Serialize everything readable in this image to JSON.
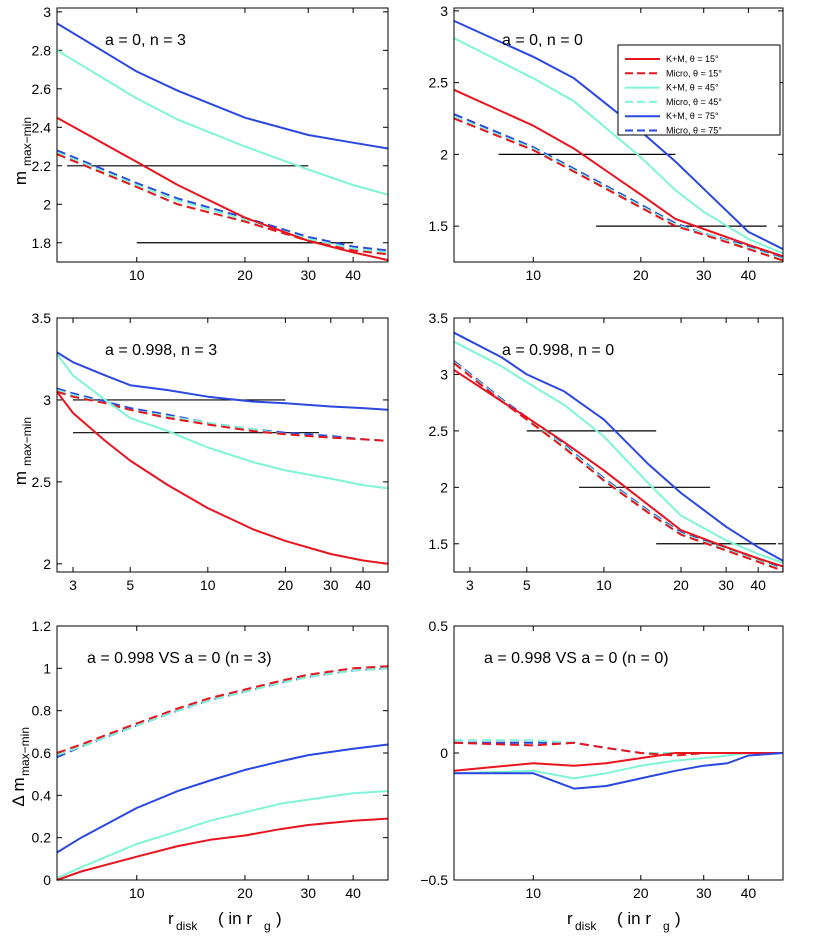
{
  "legend": {
    "entries": [
      {
        "label": "K+M,  θ = 15°",
        "color": "#e8141e",
        "dash": false
      },
      {
        "label": "Micro,  θ = 15°",
        "color": "#e8141e",
        "dash": true
      },
      {
        "label": "K+M,  θ = 45°",
        "color": "#7ff5d6",
        "dash": false
      },
      {
        "label": "Micro,  θ = 45°",
        "color": "#7ff5d6",
        "dash": true
      },
      {
        "label": "K+M,  θ = 75°",
        "color": "#2a47e0",
        "dash": false
      },
      {
        "label": "Micro,  θ = 75°",
        "color": "#2a47e0",
        "dash": true
      }
    ]
  },
  "labels": {
    "ylabel_main": "m",
    "ylabel_sub": "max−min",
    "ylabel_delta": "Δ m",
    "xlabel_main": "r",
    "xlabel_sub": "disk",
    "xlabel_units": "( in r",
    "xlabel_units_sub": "g",
    "xlabel_close": ")"
  },
  "chart_data": [
    {
      "type": "line",
      "annotation": "a = 0, n = 3",
      "xscale": "log",
      "xlim": [
        6,
        50
      ],
      "ylim": [
        1.7,
        3.02
      ],
      "xticks": [
        10,
        20,
        30,
        40
      ],
      "yticks": [
        1.8,
        2,
        2.2,
        2.4,
        2.6,
        2.8,
        3
      ],
      "x": [
        6,
        10,
        13,
        20,
        30,
        40,
        50
      ],
      "series": [
        {
          "name": "K+M, θ = 15°",
          "values": [
            2.45,
            2.22,
            2.1,
            1.93,
            1.81,
            1.75,
            1.71
          ]
        },
        {
          "name": "Micro, θ = 15°",
          "values": [
            2.26,
            2.09,
            2.0,
            1.91,
            1.81,
            1.76,
            1.74
          ]
        },
        {
          "name": "K+M, θ = 45°",
          "values": [
            2.8,
            2.55,
            2.44,
            2.3,
            2.18,
            2.1,
            2.05
          ]
        },
        {
          "name": "Micro, θ = 45°",
          "values": [
            2.27,
            2.1,
            2.02,
            1.92,
            1.82,
            1.77,
            1.75
          ]
        },
        {
          "name": "K+M, θ = 75°",
          "values": [
            2.94,
            2.69,
            2.59,
            2.45,
            2.36,
            2.32,
            2.29
          ]
        },
        {
          "name": "Micro, θ = 75°",
          "values": [
            2.28,
            2.11,
            2.03,
            1.93,
            1.83,
            1.78,
            1.76
          ]
        }
      ],
      "hlines": [
        {
          "y": 2.2,
          "x1": 6.4,
          "x2": 30
        },
        {
          "y": 1.8,
          "x1": 10,
          "x2": 40
        }
      ]
    },
    {
      "type": "line",
      "annotation": "a = 0, n = 0",
      "xscale": "log",
      "xlim": [
        6,
        50
      ],
      "ylim": [
        1.25,
        3.02
      ],
      "xticks": [
        10,
        20,
        30,
        40
      ],
      "yticks": [
        1.5,
        2,
        2.5,
        3
      ],
      "x": [
        6,
        10,
        13,
        20,
        25,
        30,
        40,
        50
      ],
      "series": [
        {
          "name": "K+M, θ = 15°",
          "values": [
            2.45,
            2.2,
            2.04,
            1.72,
            1.55,
            1.48,
            1.37,
            1.29
          ]
        },
        {
          "name": "Micro, θ = 15°",
          "values": [
            2.25,
            2.03,
            1.88,
            1.63,
            1.5,
            1.44,
            1.34,
            1.26
          ]
        },
        {
          "name": "K+M, θ = 45°",
          "values": [
            2.81,
            2.53,
            2.37,
            1.98,
            1.75,
            1.6,
            1.41,
            1.31
          ]
        },
        {
          "name": "Micro, θ = 45°",
          "values": [
            2.26,
            2.04,
            1.89,
            1.64,
            1.51,
            1.45,
            1.35,
            1.27
          ]
        },
        {
          "name": "K+M, θ = 75°",
          "values": [
            2.93,
            2.68,
            2.53,
            2.16,
            1.95,
            1.76,
            1.46,
            1.34
          ]
        },
        {
          "name": "Micro, θ = 75°",
          "values": [
            2.28,
            2.05,
            1.9,
            1.65,
            1.52,
            1.45,
            1.36,
            1.28
          ]
        }
      ],
      "hlines": [
        {
          "y": 2.0,
          "x1": 8,
          "x2": 25
        },
        {
          "y": 1.5,
          "x1": 15,
          "x2": 45
        }
      ]
    },
    {
      "type": "line",
      "annotation": "a = 0.998, n = 3",
      "xscale": "log",
      "xlim": [
        2.6,
        50
      ],
      "ylim": [
        1.95,
        3.5
      ],
      "xticks": [
        3,
        5,
        10,
        20,
        30,
        40
      ],
      "yticks": [
        2,
        2.5,
        3,
        3.5
      ],
      "x": [
        2.6,
        3,
        4,
        5,
        7,
        10,
        15,
        20,
        30,
        40,
        50
      ],
      "series": [
        {
          "name": "K+M, θ = 15°",
          "values": [
            3.05,
            2.92,
            2.75,
            2.63,
            2.48,
            2.34,
            2.21,
            2.14,
            2.06,
            2.02,
            2.0
          ]
        },
        {
          "name": "Micro, θ = 15°",
          "values": [
            3.05,
            3.02,
            2.98,
            2.94,
            2.89,
            2.85,
            2.81,
            2.79,
            2.77,
            2.76,
            2.75
          ]
        },
        {
          "name": "K+M, θ = 45°",
          "values": [
            3.28,
            3.15,
            3.0,
            2.89,
            2.81,
            2.71,
            2.62,
            2.57,
            2.52,
            2.48,
            2.46
          ]
        },
        {
          "name": "Micro, θ = 45°",
          "values": [
            3.06,
            3.03,
            2.98,
            2.94,
            2.9,
            2.86,
            2.82,
            2.79,
            2.77,
            2.76,
            2.75
          ]
        },
        {
          "name": "K+M, θ = 75°",
          "values": [
            3.29,
            3.23,
            3.15,
            3.09,
            3.06,
            3.02,
            2.99,
            2.98,
            2.96,
            2.95,
            2.94
          ]
        },
        {
          "name": "Micro, θ = 75°",
          "values": [
            3.07,
            3.04,
            2.99,
            2.95,
            2.91,
            2.86,
            2.82,
            2.8,
            2.78,
            2.76,
            2.75
          ]
        }
      ],
      "hlines": [
        {
          "y": 3.0,
          "x1": 3,
          "x2": 20
        },
        {
          "y": 2.8,
          "x1": 3,
          "x2": 27
        }
      ]
    },
    {
      "type": "line",
      "annotation": "a = 0.998, n = 0",
      "xscale": "log",
      "xlim": [
        2.6,
        50
      ],
      "ylim": [
        1.25,
        3.5
      ],
      "xticks": [
        3,
        5,
        10,
        20,
        30,
        40
      ],
      "yticks": [
        1.5,
        2,
        2.5,
        3,
        3.5
      ],
      "x": [
        2.6,
        4,
        5,
        7,
        10,
        15,
        20,
        30,
        40,
        50
      ],
      "series": [
        {
          "name": "K+M, θ = 15°",
          "values": [
            3.04,
            2.76,
            2.62,
            2.4,
            2.15,
            1.84,
            1.62,
            1.47,
            1.37,
            1.3
          ]
        },
        {
          "name": "Micro, θ = 15°",
          "values": [
            3.1,
            2.76,
            2.6,
            2.35,
            2.06,
            1.77,
            1.58,
            1.44,
            1.34,
            1.26
          ]
        },
        {
          "name": "K+M, θ = 45°",
          "values": [
            3.29,
            3.07,
            2.93,
            2.73,
            2.45,
            2.03,
            1.75,
            1.53,
            1.41,
            1.33
          ]
        },
        {
          "name": "Micro, θ = 45°",
          "values": [
            3.11,
            2.77,
            2.61,
            2.37,
            2.07,
            1.78,
            1.59,
            1.45,
            1.35,
            1.27
          ]
        },
        {
          "name": "K+M, θ = 75°",
          "values": [
            3.37,
            3.15,
            3.0,
            2.85,
            2.6,
            2.2,
            1.95,
            1.65,
            1.47,
            1.35
          ]
        },
        {
          "name": "Micro, θ = 75°",
          "values": [
            3.12,
            2.78,
            2.62,
            2.38,
            2.08,
            1.79,
            1.6,
            1.46,
            1.36,
            1.28
          ]
        }
      ],
      "hlines": [
        {
          "y": 2.5,
          "x1": 5,
          "x2": 16
        },
        {
          "y": 2.0,
          "x1": 8,
          "x2": 26
        },
        {
          "y": 1.5,
          "x1": 16,
          "x2": 47
        }
      ]
    },
    {
      "type": "line",
      "annotation": "a = 0.998 VS a = 0 (n = 3)",
      "xscale": "log",
      "xlim": [
        6,
        50
      ],
      "ylim": [
        0,
        1.2
      ],
      "xticks": [
        10,
        20,
        30,
        40
      ],
      "yticks": [
        0,
        0.2,
        0.4,
        0.6,
        0.8,
        1,
        1.2
      ],
      "x": [
        6,
        7,
        10,
        13,
        16,
        20,
        25,
        30,
        40,
        50
      ],
      "series": [
        {
          "name": "K+M, θ = 15°",
          "values": [
            0.0,
            0.04,
            0.11,
            0.16,
            0.19,
            0.21,
            0.24,
            0.26,
            0.28,
            0.29
          ]
        },
        {
          "name": "Micro, θ = 15°",
          "values": [
            0.6,
            0.64,
            0.74,
            0.81,
            0.86,
            0.9,
            0.94,
            0.97,
            1.0,
            1.01
          ]
        },
        {
          "name": "K+M, θ = 45°",
          "values": [
            0.01,
            0.06,
            0.17,
            0.23,
            0.28,
            0.32,
            0.36,
            0.38,
            0.41,
            0.42
          ]
        },
        {
          "name": "Micro, θ = 45°",
          "values": [
            0.59,
            0.63,
            0.73,
            0.8,
            0.85,
            0.89,
            0.93,
            0.96,
            0.99,
            1.0
          ]
        },
        {
          "name": "K+M, θ = 75°",
          "values": [
            0.13,
            0.2,
            0.34,
            0.42,
            0.47,
            0.52,
            0.56,
            0.59,
            0.62,
            0.64
          ]
        },
        {
          "name": "Micro, θ = 75°",
          "values": [
            0.58,
            0.63,
            0.73,
            0.8,
            0.85,
            0.89,
            0.93,
            0.96,
            0.99,
            1.0
          ]
        }
      ],
      "hlines": []
    },
    {
      "type": "line",
      "annotation": "a = 0.998 VS a = 0 (n = 0)",
      "xscale": "log",
      "xlim": [
        6,
        50
      ],
      "ylim": [
        -0.5,
        0.5
      ],
      "xticks": [
        10,
        20,
        30,
        40
      ],
      "yticks": [
        -0.5,
        0,
        0.5
      ],
      "x": [
        6,
        10,
        13,
        16,
        20,
        25,
        30,
        35,
        40,
        50
      ],
      "series": [
        {
          "name": "K+M, θ = 15°",
          "values": [
            -0.07,
            -0.04,
            -0.05,
            -0.04,
            -0.02,
            0.0,
            0.0,
            0.0,
            0.0,
            0.0
          ]
        },
        {
          "name": "Micro, θ = 15°",
          "values": [
            0.04,
            0.03,
            0.04,
            0.02,
            0.0,
            -0.01,
            0.0,
            0.0,
            0.0,
            0.0
          ]
        },
        {
          "name": "K+M, θ = 45°",
          "values": [
            -0.08,
            -0.07,
            -0.1,
            -0.08,
            -0.05,
            -0.03,
            -0.02,
            -0.01,
            0.0,
            0.0
          ]
        },
        {
          "name": "Micro, θ = 45°",
          "values": [
            0.05,
            0.05,
            0.04,
            0.02,
            0.0,
            0.0,
            0.0,
            0.0,
            0.0,
            0.0
          ]
        },
        {
          "name": "K+M, θ = 75°",
          "values": [
            -0.08,
            -0.08,
            -0.14,
            -0.13,
            -0.1,
            -0.07,
            -0.05,
            -0.04,
            -0.01,
            0.0
          ]
        },
        {
          "name": "Micro, θ = 75°",
          "values": [
            0.04,
            0.04,
            0.04,
            0.02,
            0.0,
            0.0,
            0.0,
            0.0,
            0.0,
            0.0
          ]
        }
      ],
      "hlines": []
    }
  ]
}
